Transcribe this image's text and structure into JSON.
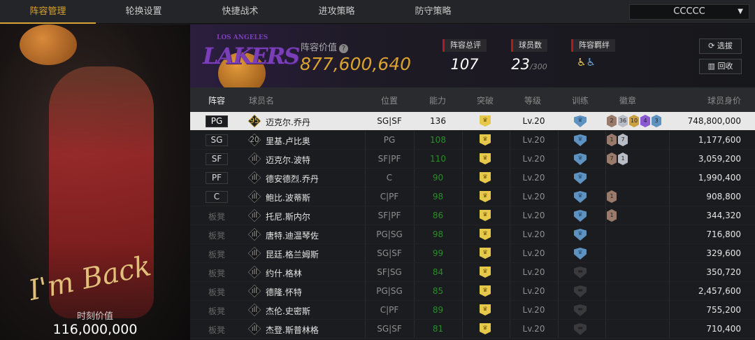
{
  "nav": {
    "tabs": [
      "阵容管理",
      "轮换设置",
      "快捷战术",
      "进攻策略",
      "防守策略"
    ],
    "active": 0,
    "dropdown": "CCCCC"
  },
  "featured": {
    "script": "I'm Back",
    "value_label": "时刻价值",
    "value": "116,000,000"
  },
  "team": {
    "logo_text": "LAKERS",
    "logo_subtext": "LOS ANGELES",
    "value_label": "阵容价值",
    "value": "877,600,640",
    "rating_label": "阵容总评",
    "rating": "107",
    "players_label": "球员数",
    "players": "23",
    "players_max": "/300",
    "bond_label": "阵容羁绊",
    "select_btn": "选拔",
    "recycle_btn": "回收"
  },
  "columns": [
    "阵容",
    "球员名",
    "位置",
    "能力",
    "突破",
    "等级",
    "训练",
    "徽章",
    "球员身价"
  ],
  "colors": {
    "accent": "#d9a232",
    "ability_green": "#2e8a2e",
    "training_blue": "#5e92c0",
    "breakthrough_yellow": "#e6c94a"
  },
  "rows": [
    {
      "slot": "PG",
      "icon": "95",
      "name": "迈克尔.乔丹",
      "pos": "SG|SF",
      "ability": "136",
      "level": "Lv.20",
      "training": true,
      "badges": [
        {
          "n": "2",
          "c": "#9a7a6a"
        },
        {
          "n": "36",
          "c": "#b8bcc4"
        },
        {
          "n": "10",
          "c": "#c9a040"
        },
        {
          "n": "4",
          "c": "#8a5ad0"
        },
        {
          "n": "3",
          "c": "#5e92c0"
        }
      ],
      "price": "748,800,000"
    },
    {
      "slot": "SG",
      "icon": "20",
      "name": "里基.卢比奥",
      "pos": "PG",
      "ability": "108",
      "level": "Lv.20",
      "training": true,
      "badges": [
        {
          "n": "1",
          "c": "#9a7a6a"
        },
        {
          "n": "7",
          "c": "#b8bcc4"
        }
      ],
      "price": "1,177,600"
    },
    {
      "slot": "SF",
      "icon": "ıll",
      "name": "迈克尔.波特",
      "pos": "SF|PF",
      "ability": "110",
      "level": "Lv.20",
      "training": true,
      "badges": [
        {
          "n": "7",
          "c": "#9a7a6a"
        },
        {
          "n": "1",
          "c": "#b8bcc4"
        }
      ],
      "price": "3,059,200"
    },
    {
      "slot": "PF",
      "icon": "ıll",
      "name": "德安德烈.乔丹",
      "pos": "C",
      "ability": "90",
      "level": "Lv.20",
      "training": true,
      "badges": [],
      "price": "1,990,400"
    },
    {
      "slot": "C",
      "icon": "ıll",
      "name": "鲍比.波蒂斯",
      "pos": "C|PF",
      "ability": "98",
      "level": "Lv.20",
      "training": true,
      "badges": [
        {
          "n": "1",
          "c": "#9a7a6a"
        }
      ],
      "price": "908,800"
    },
    {
      "slot": "板凳",
      "icon": "ıll",
      "name": "托尼.斯内尔",
      "pos": "SF|PF",
      "ability": "86",
      "level": "Lv.20",
      "training": true,
      "badges": [
        {
          "n": "1",
          "c": "#9a7a6a"
        }
      ],
      "price": "344,320"
    },
    {
      "slot": "板凳",
      "icon": "ıll",
      "name": "唐特.迪温琴佐",
      "pos": "PG|SG",
      "ability": "98",
      "level": "Lv.20",
      "training": true,
      "badges": [],
      "price": "716,800"
    },
    {
      "slot": "板凳",
      "icon": "ıll",
      "name": "昆廷.格兰姆斯",
      "pos": "SG|SF",
      "ability": "99",
      "level": "Lv.20",
      "training": true,
      "badges": [],
      "price": "329,600"
    },
    {
      "slot": "板凳",
      "icon": "ıll",
      "name": "约什.格林",
      "pos": "SF|SG",
      "ability": "84",
      "level": "Lv.20",
      "training": false,
      "badges": [],
      "price": "350,720"
    },
    {
      "slot": "板凳",
      "icon": "ıll",
      "name": "德隆.怀特",
      "pos": "PG|SG",
      "ability": "85",
      "level": "Lv.20",
      "training": false,
      "badges": [],
      "price": "2,457,600"
    },
    {
      "slot": "板凳",
      "icon": "ıll",
      "name": "杰伦.史密斯",
      "pos": "C|PF",
      "ability": "89",
      "level": "Lv.20",
      "training": false,
      "badges": [],
      "price": "755,200"
    },
    {
      "slot": "板凳",
      "icon": "ıll",
      "name": "杰登.斯普林格",
      "pos": "SG|SF",
      "ability": "81",
      "level": "Lv.20",
      "training": false,
      "badges": [],
      "price": "710,400"
    }
  ]
}
